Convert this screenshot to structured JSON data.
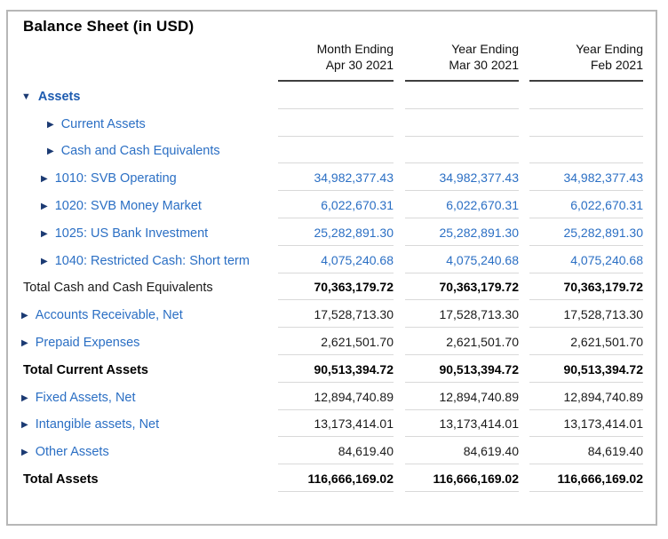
{
  "title": "Balance Sheet (in USD)",
  "colors": {
    "blue": "#2b6fc4",
    "blue_bold": "#1d5bb0",
    "arrow_navy": "#1b3a73",
    "row_separator": "#d9d9d9",
    "header_rule": "#3f3f3f",
    "panel_border": "#b7b7b7"
  },
  "columns": [
    {
      "line1": "Month Ending",
      "line2": "Apr 30 2021"
    },
    {
      "line1": "Year Ending",
      "line2": "Mar 30 2021"
    },
    {
      "line1": "Year Ending",
      "line2": "Feb 2021"
    }
  ],
  "rows": [
    {
      "label": "Assets",
      "type": "section",
      "arrow": "down",
      "values": [
        "",
        "",
        ""
      ]
    },
    {
      "label": "Current Assets",
      "type": "group",
      "arrow": "right",
      "values": [
        "",
        "",
        ""
      ]
    },
    {
      "label": "Cash and Cash Equivalents",
      "type": "group",
      "arrow": "right",
      "values": [
        "",
        "",
        ""
      ]
    },
    {
      "label": "1010: SVB Operating",
      "type": "account",
      "arrow": "right",
      "values": [
        "34,982,377.43",
        "34,982,377.43",
        "34,982,377.43"
      ]
    },
    {
      "label": "1020: SVB Money Market",
      "type": "account",
      "arrow": "right",
      "values": [
        "6,022,670.31",
        "6,022,670.31",
        "6,022,670.31"
      ]
    },
    {
      "label": "1025: US Bank Investment",
      "type": "account",
      "arrow": "right",
      "values": [
        "25,282,891.30",
        "25,282,891.30",
        "25,282,891.30"
      ]
    },
    {
      "label": "1040: Restricted Cash: Short term",
      "type": "account",
      "arrow": "right",
      "values": [
        "4,075,240.68",
        "4,075,240.68",
        "4,075,240.68"
      ]
    },
    {
      "label": "Total Cash and Cash Equivalents",
      "type": "total-plain",
      "arrow": "none",
      "values": [
        "70,363,179.72",
        "70,363,179.72",
        "70,363,179.72"
      ]
    },
    {
      "label": "Accounts Receivable, Net",
      "type": "parent",
      "arrow": "right",
      "values": [
        "17,528,713.30",
        "17,528,713.30",
        "17,528,713.30"
      ]
    },
    {
      "label": "Prepaid Expenses",
      "type": "parent",
      "arrow": "right",
      "values": [
        "2,621,501.70",
        "2,621,501.70",
        "2,621,501.70"
      ]
    },
    {
      "label": "Total Current Assets",
      "type": "total",
      "arrow": "none",
      "values": [
        "90,513,394.72",
        "90,513,394.72",
        "90,513,394.72"
      ]
    },
    {
      "label": "Fixed Assets, Net",
      "type": "parent",
      "arrow": "right",
      "values": [
        "12,894,740.89",
        "12,894,740.89",
        "12,894,740.89"
      ]
    },
    {
      "label": "Intangible assets, Net",
      "type": "parent",
      "arrow": "right",
      "values": [
        "13,173,414.01",
        "13,173,414.01",
        "13,173,414.01"
      ]
    },
    {
      "label": "Other Assets",
      "type": "parent",
      "arrow": "right",
      "values": [
        "84,619.40",
        "84,619.40",
        "84,619.40"
      ]
    },
    {
      "label": "Total Assets",
      "type": "total",
      "arrow": "none",
      "values": [
        "116,666,169.02",
        "116,666,169.02",
        "116,666,169.02"
      ]
    }
  ]
}
